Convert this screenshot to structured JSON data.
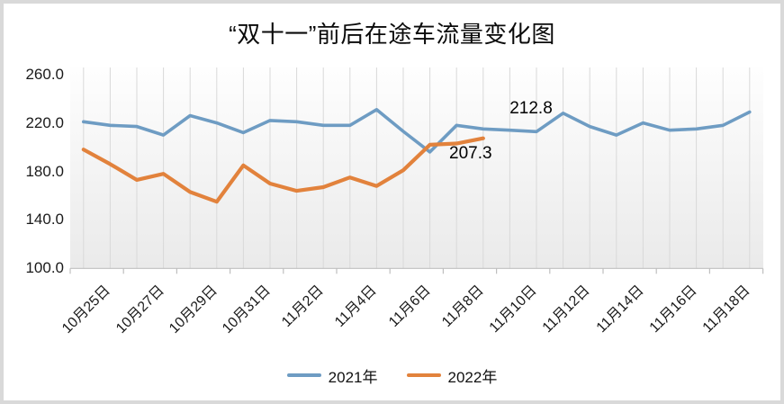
{
  "chart_data": {
    "type": "line",
    "title": "“双十一”前后在途车流量变化图",
    "y_axis": {
      "min": 100,
      "max": 260,
      "step": 40,
      "ticks": [
        "260.0",
        "220.0",
        "180.0",
        "140.0",
        "100.0"
      ]
    },
    "x_axis": {
      "labels": [
        "10月25日",
        "10月27日",
        "10月29日",
        "10月31日",
        "11月2日",
        "11月4日",
        "11月6日",
        "11月8日",
        "11月10日",
        "11月12日",
        "11月14日",
        "11月16日",
        "11月18日"
      ]
    },
    "grid": "vertical-gridlines-only",
    "legend": {
      "position": "bottom",
      "items": [
        "2021年",
        "2022年"
      ]
    },
    "series": [
      {
        "name": "2021年",
        "color": "#6e9cc3",
        "dates": [
          "10月25日",
          "10月26日",
          "10月27日",
          "10月28日",
          "10月29日",
          "10月30日",
          "10月31日",
          "11月1日",
          "11月2日",
          "11月3日",
          "11月4日",
          "11月5日",
          "11月6日",
          "11月7日",
          "11月8日",
          "11月9日",
          "11月10日",
          "11月11日",
          "11月12日",
          "11月13日",
          "11月14日",
          "11月15日",
          "11月16日",
          "11月17日",
          "11月18日",
          "11月19日"
        ],
        "values": [
          221,
          218,
          217,
          210,
          226,
          220,
          212,
          222,
          221,
          218,
          218,
          231,
          213,
          196,
          218,
          215,
          214,
          212.8,
          228,
          217,
          210,
          220,
          214,
          215,
          218,
          229
        ]
      },
      {
        "name": "2022年",
        "color": "#e2823c",
        "dates": [
          "10月25日",
          "10月26日",
          "10月27日",
          "10月28日",
          "10月29日",
          "10月30日",
          "10月31日",
          "11月1日",
          "11月2日",
          "11月3日",
          "11月4日",
          "11月5日",
          "11月6日",
          "11月7日",
          "11月8日",
          "11月9日"
        ],
        "values": [
          198,
          186,
          173,
          178,
          163,
          155,
          185,
          170,
          164,
          167,
          175,
          168,
          181,
          202,
          203,
          207.3
        ]
      }
    ],
    "annotations": [
      {
        "text": "212.8",
        "series": 0,
        "index": 17,
        "placement": "above"
      },
      {
        "text": "207.3",
        "series": 1,
        "index": 15,
        "placement": "below-left"
      }
    ],
    "colors": {
      "gridline": "#d9d9d9",
      "axis": "#bfbfbf",
      "plot_bg_top": "#fefefe",
      "plot_bg_bottom": "#eaeaea",
      "frame_border": "#d9d9d9"
    }
  }
}
